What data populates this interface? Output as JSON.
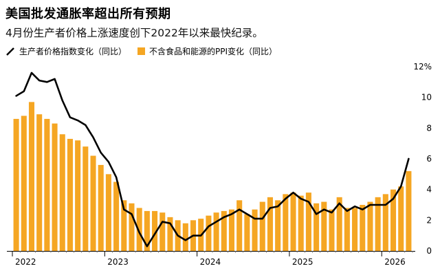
{
  "header": {
    "title": "美国批发通胀率超出所有预期",
    "subtitle": "4月份生产者价格上涨速度创下2022年以来最快纪录。"
  },
  "colors": {
    "bar": "#F5A623",
    "line": "#000000",
    "axis": "#000000"
  },
  "chart_data": {
    "type": "bar",
    "y_axis_side": "right",
    "ylim": [
      0,
      12
    ],
    "y_ticks": [
      0,
      2,
      4,
      6,
      8,
      10,
      12
    ],
    "y_tick_labels": [
      "0",
      "2",
      "4",
      "6",
      "8",
      "10",
      "12%"
    ],
    "x_tick_labels": [
      "2022",
      "2023",
      "2024",
      "2025",
      "2026"
    ],
    "x_tick_month_index": [
      0,
      12,
      24,
      36,
      48
    ],
    "start_month": "2022-01",
    "series": [
      {
        "name": "生产者价格指数变化（同比）",
        "type": "line",
        "values": [
          10.1,
          10.4,
          11.6,
          11.1,
          11.0,
          11.2,
          9.8,
          8.7,
          8.5,
          8.2,
          7.4,
          6.4,
          5.8,
          4.8,
          2.7,
          2.4,
          1.2,
          0.3,
          1.1,
          1.9,
          1.8,
          1.0,
          0.7,
          1.0,
          1.0,
          1.6,
          1.9,
          2.2,
          2.4,
          2.7,
          2.4,
          2.1,
          2.1,
          2.8,
          2.9,
          3.4,
          3.8,
          3.4,
          3.2,
          2.4,
          2.7,
          2.5,
          3.1,
          2.6,
          2.9,
          2.7,
          3.0,
          3.0,
          3.0,
          3.4,
          4.2,
          6.0
        ]
      },
      {
        "name": "不含食品和能源的PPI变化（同比）",
        "type": "bar",
        "values": [
          8.6,
          8.8,
          9.7,
          8.9,
          8.6,
          8.3,
          7.6,
          7.3,
          7.2,
          6.8,
          6.2,
          5.6,
          5.0,
          4.5,
          3.3,
          3.1,
          2.8,
          2.6,
          2.6,
          2.5,
          2.2,
          2.0,
          1.8,
          2.0,
          2.1,
          2.3,
          2.5,
          2.6,
          2.7,
          3.3,
          2.4,
          2.7,
          3.2,
          3.5,
          3.3,
          3.7,
          3.8,
          3.6,
          3.8,
          3.1,
          3.2,
          2.7,
          3.5,
          2.8,
          2.8,
          3.0,
          3.2,
          3.5,
          3.7,
          4.0,
          4.2,
          5.2
        ]
      }
    ]
  }
}
